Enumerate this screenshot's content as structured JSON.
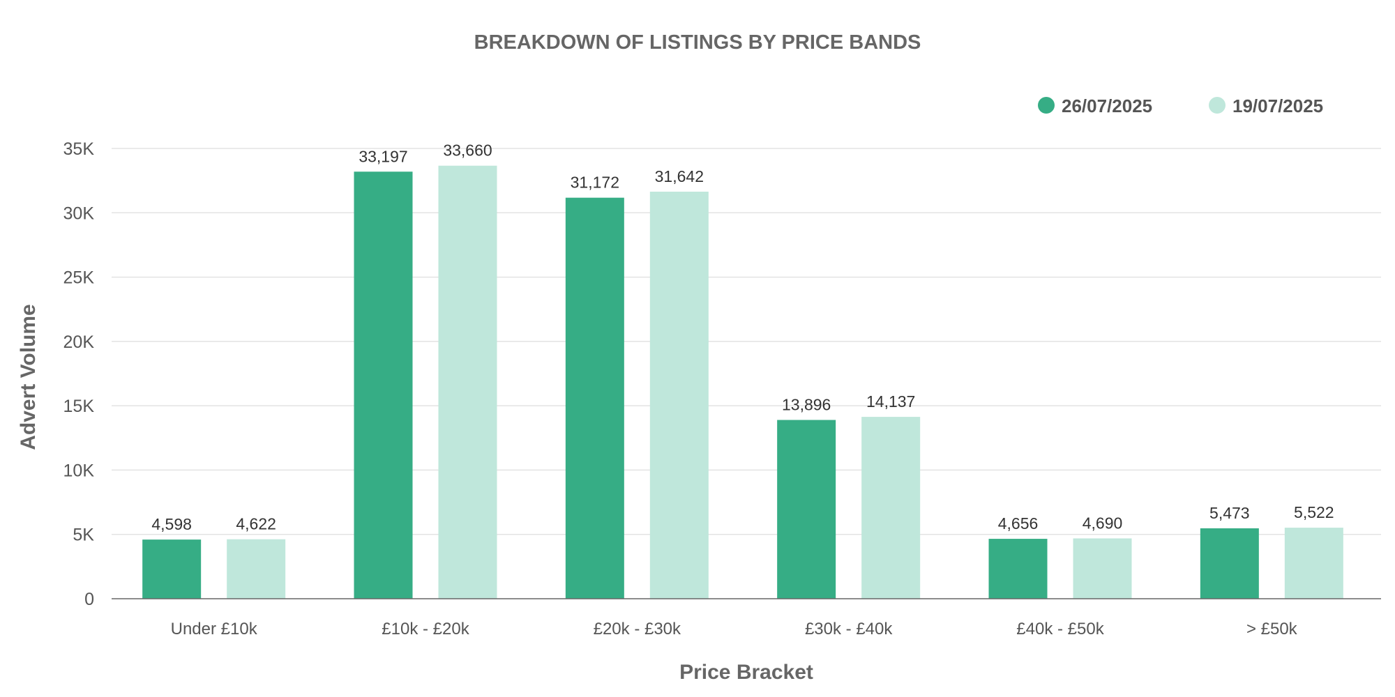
{
  "chart_data": {
    "type": "bar",
    "title": "BREAKDOWN OF LISTINGS BY PRICE BANDS",
    "xlabel": "Price Bracket",
    "ylabel": "Advert Volume",
    "categories": [
      "Under £10k",
      "£10k - £20k",
      "£20k - £30k",
      "£30k - £40k",
      "£40k - £50k",
      "> £50k"
    ],
    "series": [
      {
        "name": "26/07/2025",
        "color": "#36ad85",
        "values": [
          4598,
          33197,
          31172,
          13896,
          4656,
          5473
        ],
        "labels": [
          "4,598",
          "33,197",
          "31,172",
          "13,896",
          "4,656",
          "5,473"
        ]
      },
      {
        "name": "19/07/2025",
        "color": "#bfe7db",
        "values": [
          4622,
          33660,
          31642,
          14137,
          4690,
          5522
        ],
        "labels": [
          "4,622",
          "33,660",
          "31,642",
          "14,137",
          "4,690",
          "5,522"
        ]
      }
    ],
    "ylim": [
      0,
      35000
    ],
    "yticks": [
      0,
      5000,
      10000,
      15000,
      20000,
      25000,
      30000,
      35000
    ],
    "ytick_labels": [
      "0",
      "5K",
      "10K",
      "15K",
      "20K",
      "25K",
      "30K",
      "35K"
    ],
    "grid": true,
    "legend_position": "top-right"
  }
}
